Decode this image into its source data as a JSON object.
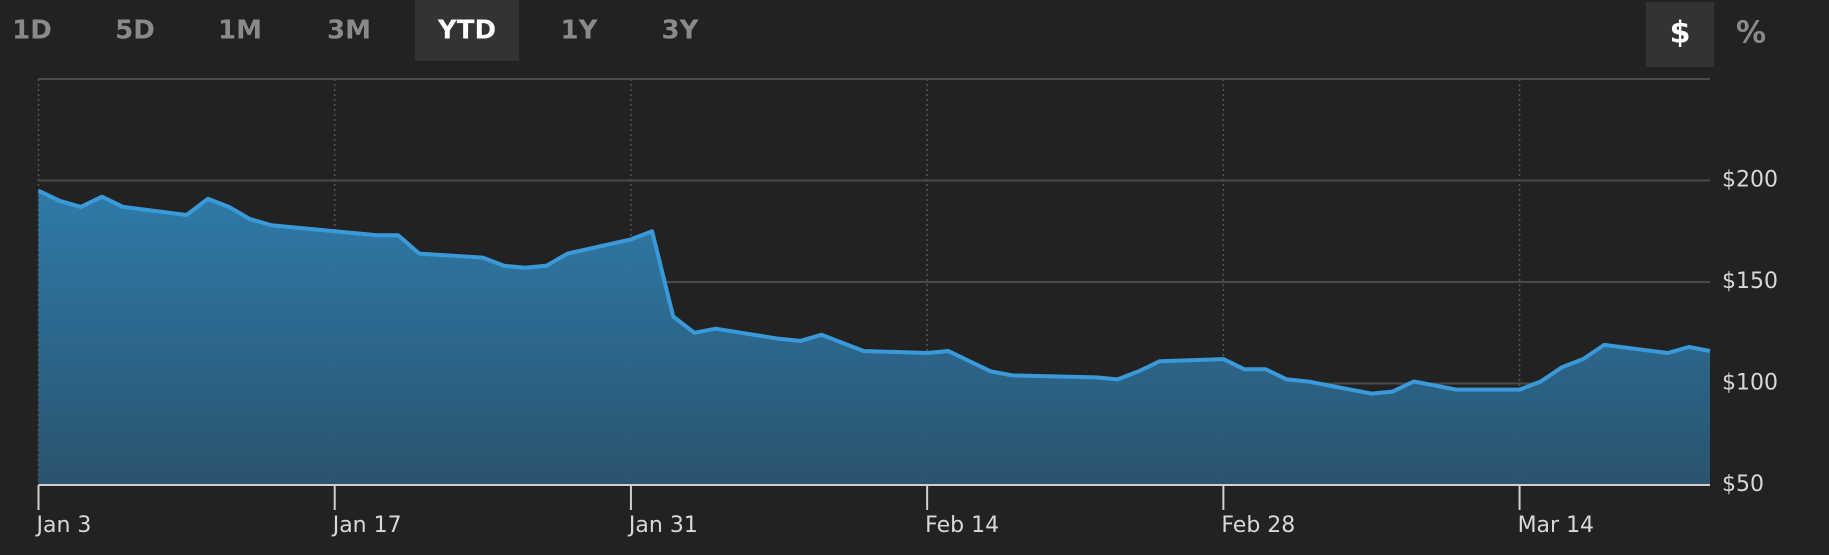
{
  "ui": {
    "ranges": [
      "1D",
      "5D",
      "1M",
      "3M",
      "YTD",
      "1Y",
      "3Y"
    ],
    "selected_range": 4,
    "modes": [
      "$",
      "%"
    ],
    "selected_mode": 0
  },
  "chart_data": {
    "type": "area",
    "color": "#3a9ad9",
    "x": [
      "Jan 3",
      "Jan 4",
      "Jan 5",
      "Jan 6",
      "Jan 7",
      "Jan 10",
      "Jan 11",
      "Jan 12",
      "Jan 13",
      "Jan 14",
      "Jan 18",
      "Jan 19",
      "Jan 20",
      "Jan 21",
      "Jan 24",
      "Jan 25",
      "Jan 26",
      "Jan 27",
      "Jan 28",
      "Jan 31",
      "Feb 1",
      "Feb 2",
      "Feb 3",
      "Feb 4",
      "Feb 7",
      "Feb 8",
      "Feb 9",
      "Feb 10",
      "Feb 11",
      "Feb 14",
      "Feb 15",
      "Feb 16",
      "Feb 17",
      "Feb 18",
      "Feb 22",
      "Feb 23",
      "Feb 24",
      "Feb 25",
      "Feb 28",
      "Mar 1",
      "Mar 2",
      "Mar 3",
      "Mar 4",
      "Mar 7",
      "Mar 8",
      "Mar 9",
      "Mar 10",
      "Mar 11",
      "Mar 14",
      "Mar 15",
      "Mar 16",
      "Mar 17",
      "Mar 18",
      "Mar 21",
      "Mar 22",
      "Mar 23"
    ],
    "values": [
      195,
      190,
      187,
      192,
      187,
      183,
      191,
      187,
      181,
      178,
      174,
      173,
      173,
      164,
      162,
      158,
      157,
      158,
      164,
      171,
      175,
      133,
      125,
      127,
      122,
      121,
      124,
      120,
      116,
      115,
      116,
      111,
      106,
      104,
      103,
      102,
      106,
      111,
      112,
      107,
      107,
      102,
      101,
      95,
      96,
      101,
      99,
      97,
      97,
      101,
      108,
      112,
      119,
      115,
      118,
      116
    ],
    "xlim": [
      "Jan 3",
      "Mar 23"
    ],
    "xticks": [
      "Jan 3",
      "Jan 17",
      "Jan 31",
      "Feb 14",
      "Feb 28",
      "Mar 14"
    ],
    "ylim": [
      50,
      250
    ],
    "yticks": [
      {
        "value": 50,
        "label": "$50"
      },
      {
        "value": 100,
        "label": "$100"
      },
      {
        "value": 150,
        "label": "$150"
      },
      {
        "value": 200,
        "label": "$200"
      }
    ],
    "grid": true
  }
}
